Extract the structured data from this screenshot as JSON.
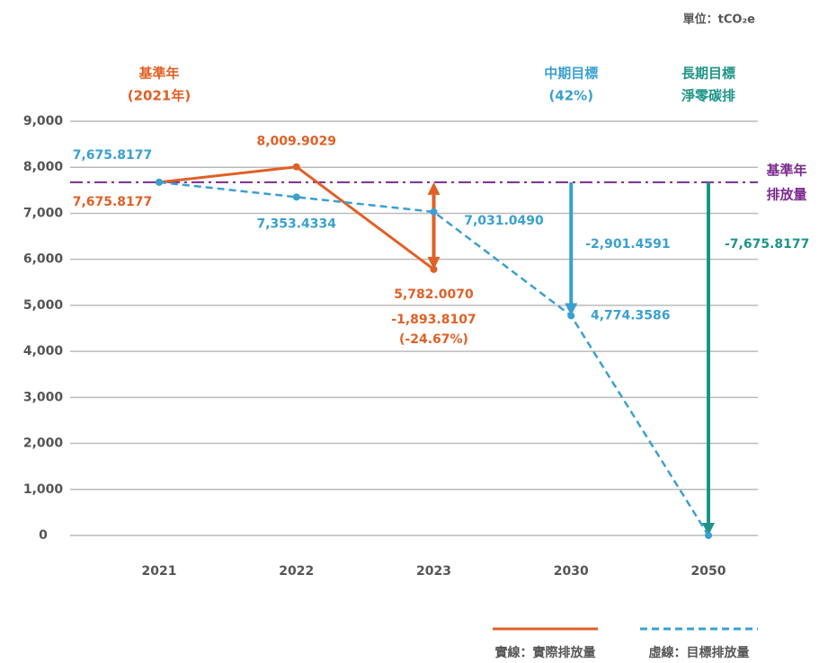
{
  "chart_data": {
    "type": "line",
    "unit": "單位：tCO₂e",
    "categories": [
      "2021",
      "2022",
      "2023",
      "2030",
      "2050"
    ],
    "series": [
      {
        "name": "實線：實際排放量",
        "color": "#e06026",
        "style": "solid",
        "values": [
          7675.8177,
          8009.9029,
          5782.007,
          null,
          null
        ],
        "value_labels": [
          "7,675.8177",
          "8,009.9029",
          "5,782.0070",
          null,
          null
        ]
      },
      {
        "name": "虛線：目標排放量",
        "color": "#3aa0d0",
        "style": "dashed",
        "values": [
          7675.8177,
          7353.4334,
          7031.049,
          4774.3586,
          0
        ],
        "value_labels": [
          "7,675.8177",
          "7,353.4334",
          "7,031.0490",
          "4,774.3586",
          null
        ]
      }
    ],
    "baseline": {
      "value": 7675.8177,
      "lines": [
        "基準年",
        "排放量"
      ],
      "color": "#7b2a8e"
    },
    "headers": [
      {
        "category": "2021",
        "lines": [
          "基準年",
          "(2021年)"
        ],
        "color": "#e06026"
      },
      {
        "category": "2030",
        "lines": [
          "中期目標",
          "(42%)"
        ],
        "color": "#3aa0d0"
      },
      {
        "category": "2050",
        "lines": [
          "長期目標",
          "淨零碳排"
        ],
        "color": "#1e9488"
      }
    ],
    "differences": [
      {
        "category": "2023",
        "value": -1893.8107,
        "label": "-1,893.8107",
        "percent_label": "(-24.67%)",
        "color": "#e06026",
        "double_headed": true
      },
      {
        "category": "2030",
        "value": -2901.4591,
        "label": "-2,901.4591",
        "color": "#3aa0d0",
        "double_headed": false
      },
      {
        "category": "2050",
        "value": -7675.8177,
        "label": "-7,675.8177",
        "color": "#1e9488",
        "double_headed": false
      }
    ],
    "ylim": [
      0,
      9000
    ],
    "yticks": [
      0,
      {
        "value": 1000,
        "label": "1,000"
      },
      {
        "value": 2000,
        "label": "2,000"
      },
      {
        "value": 3000,
        "label": "3,000"
      },
      {
        "value": 4000,
        "label": "4,000"
      },
      {
        "value": 5000,
        "label": "5,000"
      },
      {
        "value": 6000,
        "label": "6,000"
      },
      {
        "value": 7000,
        "label": "7,000"
      },
      {
        "value": 8000,
        "label": "8,000"
      },
      {
        "value": 9000,
        "label": "9,000"
      }
    ],
    "grid": true
  }
}
